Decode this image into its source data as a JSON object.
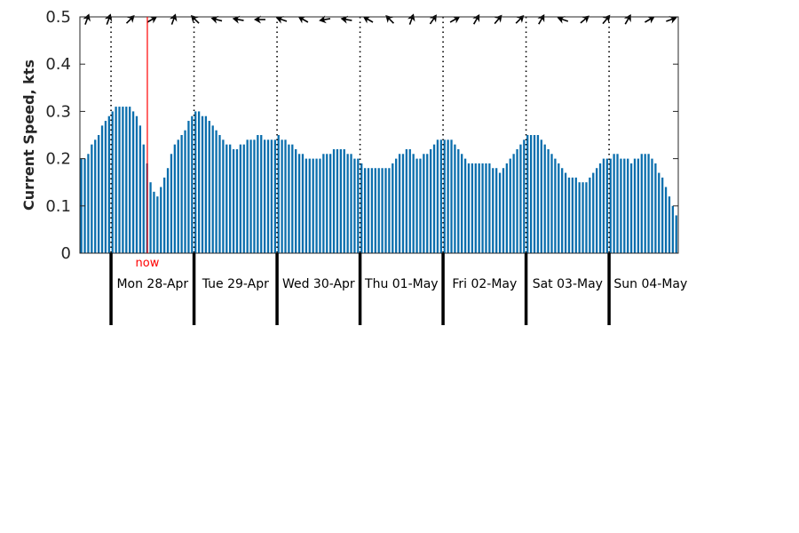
{
  "chart_data": {
    "type": "bar",
    "title": "",
    "ylabel": "Current Speed, kts",
    "ylim": [
      0,
      0.5
    ],
    "yticks": [
      "0",
      "0.1",
      "0.2",
      "0.3",
      "0.4",
      "0.5"
    ],
    "grid": false,
    "bar_color": "#0A6EAD",
    "start": "Mon 28-Apr 0 h minus 9 h (hourly samples)",
    "values": [
      0.2,
      0.2,
      0.21,
      0.23,
      0.24,
      0.25,
      0.27,
      0.28,
      0.29,
      0.3,
      0.31,
      0.31,
      0.31,
      0.31,
      0.31,
      0.3,
      0.29,
      0.27,
      0.23,
      0.19,
      0.15,
      0.13,
      0.12,
      0.14,
      0.16,
      0.18,
      0.21,
      0.23,
      0.24,
      0.25,
      0.26,
      0.28,
      0.29,
      0.3,
      0.3,
      0.29,
      0.29,
      0.28,
      0.27,
      0.26,
      0.25,
      0.24,
      0.23,
      0.23,
      0.22,
      0.22,
      0.23,
      0.23,
      0.24,
      0.24,
      0.24,
      0.25,
      0.25,
      0.24,
      0.24,
      0.24,
      0.24,
      0.25,
      0.24,
      0.24,
      0.23,
      0.23,
      0.22,
      0.21,
      0.21,
      0.2,
      0.2,
      0.2,
      0.2,
      0.2,
      0.21,
      0.21,
      0.21,
      0.22,
      0.22,
      0.22,
      0.22,
      0.21,
      0.21,
      0.2,
      0.2,
      0.19,
      0.18,
      0.18,
      0.18,
      0.18,
      0.18,
      0.18,
      0.18,
      0.18,
      0.19,
      0.2,
      0.21,
      0.21,
      0.22,
      0.22,
      0.21,
      0.2,
      0.2,
      0.21,
      0.21,
      0.22,
      0.23,
      0.24,
      0.24,
      0.24,
      0.24,
      0.24,
      0.23,
      0.22,
      0.21,
      0.2,
      0.19,
      0.19,
      0.19,
      0.19,
      0.19,
      0.19,
      0.19,
      0.18,
      0.18,
      0.17,
      0.18,
      0.19,
      0.2,
      0.21,
      0.22,
      0.23,
      0.24,
      0.25,
      0.25,
      0.25,
      0.25,
      0.24,
      0.23,
      0.22,
      0.21,
      0.2,
      0.19,
      0.18,
      0.17,
      0.16,
      0.16,
      0.16,
      0.15,
      0.15,
      0.15,
      0.16,
      0.17,
      0.18,
      0.19,
      0.2,
      0.2,
      0.2,
      0.21,
      0.21,
      0.2,
      0.2,
      0.2,
      0.19,
      0.2,
      0.2,
      0.21,
      0.21,
      0.21,
      0.2,
      0.19,
      0.17,
      0.16,
      0.14,
      0.12,
      0.1,
      0.08
    ],
    "direction_arrows_deg": [
      20,
      20,
      45,
      60,
      20,
      -45,
      -75,
      -80,
      -90,
      -70,
      -60,
      -100,
      -80,
      -60,
      -45,
      20,
      35,
      60,
      30,
      40,
      45,
      30,
      -70,
      50,
      40,
      30,
      60,
      70
    ],
    "days": [
      "Mon 28-Apr",
      "Tue 29-Apr",
      "Wed 30-Apr",
      "Thu 01-May",
      "Fri 02-May",
      "Sat 03-May",
      "Sun 04-May"
    ],
    "now_label": "now",
    "now_hour": 19,
    "now_color": "#ff0000"
  }
}
